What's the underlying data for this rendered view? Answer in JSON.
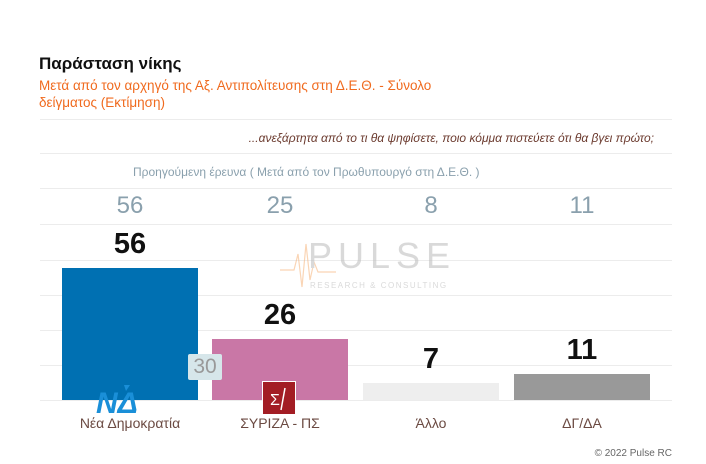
{
  "header": {
    "title": "Παράσταση νίκης",
    "subtitle": "Μετά από τον αρχηγό της Αξ. Αντιπολίτευσης στη Δ.Ε.Θ. - Σύνολο δείγματος   (Εκτίμηση)"
  },
  "question": "...ανεξάρτητα από το τι θα ψηφίσετε, ποιο κόμμα πιστεύετε ότι θα βγει πρώτο;",
  "previous_label": "Προηγούμενη έρευνα  ( Μετά από τον Πρωθυπουργό στη Δ.Ε.Θ. )",
  "chart_data": {
    "type": "bar",
    "title": "Παράσταση νίκης",
    "categories": [
      "Νέα Δημοκρατία",
      "ΣΥΡΙΖΑ - ΠΣ",
      "Άλλο",
      "ΔΓ/ΔΑ"
    ],
    "values": [
      56,
      26,
      7,
      11
    ],
    "previous_values": [
      "56",
      "25",
      "8",
      "11"
    ],
    "colors": [
      "#0070b2",
      "#c977a6",
      "#eeeeee",
      "#999999"
    ],
    "difference_label": "30",
    "ylim": [
      0,
      56
    ],
    "grid": true
  },
  "watermark": {
    "name": "PULSE",
    "tagline": "RESEARCH & CONSULTING"
  },
  "footer": "© 2022 Pulse RC"
}
